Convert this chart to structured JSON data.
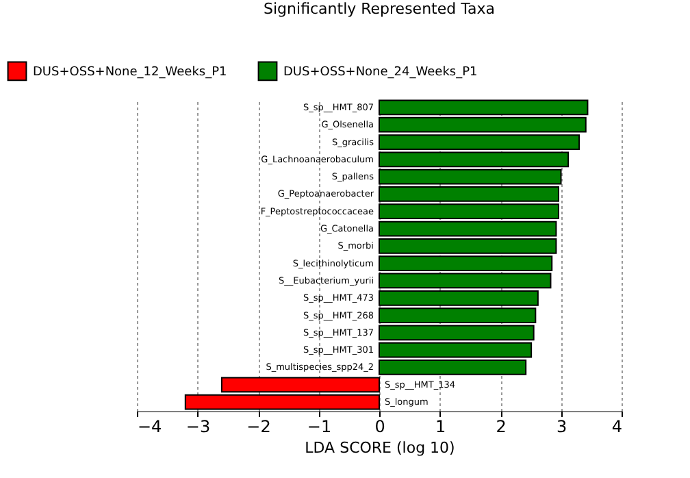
{
  "chart_data": {
    "type": "bar",
    "orientation": "horizontal",
    "title": "Significantly Represented Taxa",
    "xlabel": "LDA SCORE (log 10)",
    "categories": [
      "S_sp__HMT_807",
      "G_Olsenella",
      "S_gracilis",
      "G_Lachnoanaerobaculum",
      "S_pallens",
      "G_Peptoanaerobacter",
      "F_Peptostreptococcaceae",
      "G_Catonella",
      "S_morbi",
      "S_lecithinolyticum",
      "S__Eubacterium_yurii",
      "S_sp__HMT_473",
      "S_sp__HMT_268",
      "S_sp__HMT_137",
      "S_sp__HMT_301",
      "S_multispecies_spp24_2",
      "S_sp__HMT_134",
      "S_longum"
    ],
    "series": [
      {
        "name": "DUS+OSS+None_12_Weeks_P1",
        "color": "#ff0000",
        "values": [
          null,
          null,
          null,
          null,
          null,
          null,
          null,
          null,
          null,
          null,
          null,
          null,
          null,
          null,
          null,
          null,
          -2.6,
          -3.2
        ]
      },
      {
        "name": "DUS+OSS+None_24_Weeks_P1",
        "color": "#008000",
        "values": [
          3.44,
          3.41,
          3.3,
          3.12,
          3.0,
          2.96,
          2.96,
          2.92,
          2.92,
          2.85,
          2.83,
          2.62,
          2.58,
          2.55,
          2.51,
          2.42,
          null,
          null
        ]
      }
    ],
    "xlim": [
      -4,
      4
    ],
    "xticks": [
      -4,
      -3,
      -2,
      -1,
      0,
      1,
      2,
      3,
      4
    ],
    "grid": "x",
    "legend": "top"
  }
}
